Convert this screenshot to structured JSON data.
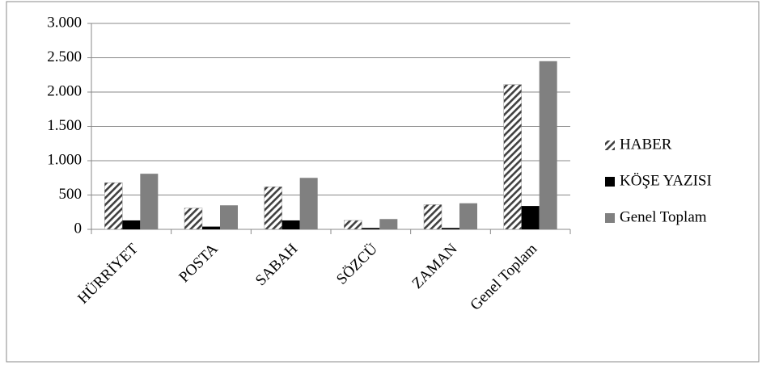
{
  "chart_data": {
    "type": "bar",
    "categories": [
      "HÜRRİYET",
      "POSTA",
      "SABAH",
      "SÖZCÜ",
      "ZAMAN",
      "Genel Toplam"
    ],
    "series": [
      {
        "name": "HABER",
        "color": "#404040",
        "pattern": "hatch",
        "values": [
          680,
          310,
          620,
          130,
          360,
          2110
        ]
      },
      {
        "name": "KÖŞE YAZISI",
        "color": "#000000",
        "values": [
          130,
          40,
          130,
          20,
          20,
          340
        ]
      },
      {
        "name": "Genel Toplam",
        "color": "#808080",
        "values": [
          810,
          350,
          750,
          150,
          380,
          2450
        ]
      }
    ],
    "ylim": [
      0,
      3000
    ],
    "yticks": [
      0,
      500,
      {
        "value": 1000,
        "label": "1.000"
      },
      {
        "value": 1500,
        "label": "1.500"
      },
      {
        "value": 2000,
        "label": "2.000"
      },
      {
        "value": 2500,
        "label": "2.500"
      },
      {
        "value": 3000,
        "label": "3.000"
      }
    ],
    "grid": true,
    "legend": "right"
  }
}
